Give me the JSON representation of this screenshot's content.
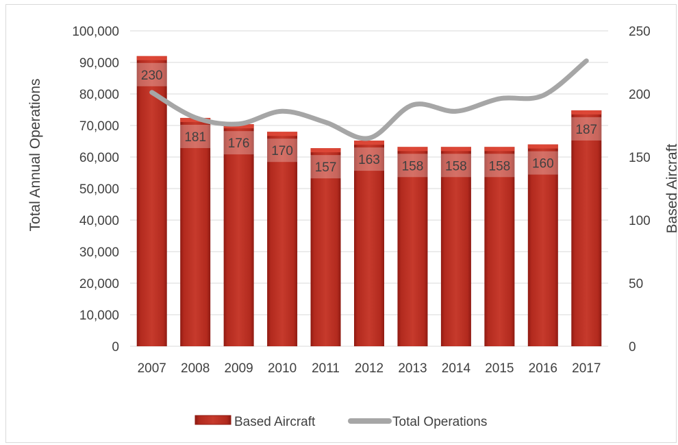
{
  "chart_data": {
    "type": "bar",
    "categories": [
      "2007",
      "2008",
      "2009",
      "2010",
      "2011",
      "2012",
      "2013",
      "2014",
      "2015",
      "2016",
      "2017"
    ],
    "series": [
      {
        "name": "Based Aircraft",
        "type": "bar",
        "axis": "right",
        "values": [
          230,
          181,
          176,
          170,
          157,
          163,
          158,
          158,
          158,
          160,
          187
        ],
        "data_labels": [
          "230",
          "181",
          "176",
          "170",
          "157",
          "163",
          "158",
          "158",
          "158",
          "160",
          "187"
        ],
        "color": "#b22a1e"
      },
      {
        "name": "Total Operations",
        "type": "line",
        "axis": "left",
        "values": [
          80500,
          72500,
          70500,
          74500,
          71000,
          66000,
          76500,
          74500,
          78500,
          79500,
          90500
        ],
        "color": "#a6a6a6"
      }
    ],
    "ylabel": "Total Annual Operations",
    "y2label": "Based Aircraft",
    "ylim": [
      0,
      100000
    ],
    "y2lim": [
      0,
      250
    ],
    "yticks": [
      "0",
      "10,000",
      "20,000",
      "30,000",
      "40,000",
      "50,000",
      "60,000",
      "70,000",
      "80,000",
      "90,000",
      "100,000"
    ],
    "y2ticks": [
      "0",
      "50",
      "100",
      "150",
      "200",
      "250"
    ],
    "grid": true,
    "legend_position": "bottom"
  }
}
